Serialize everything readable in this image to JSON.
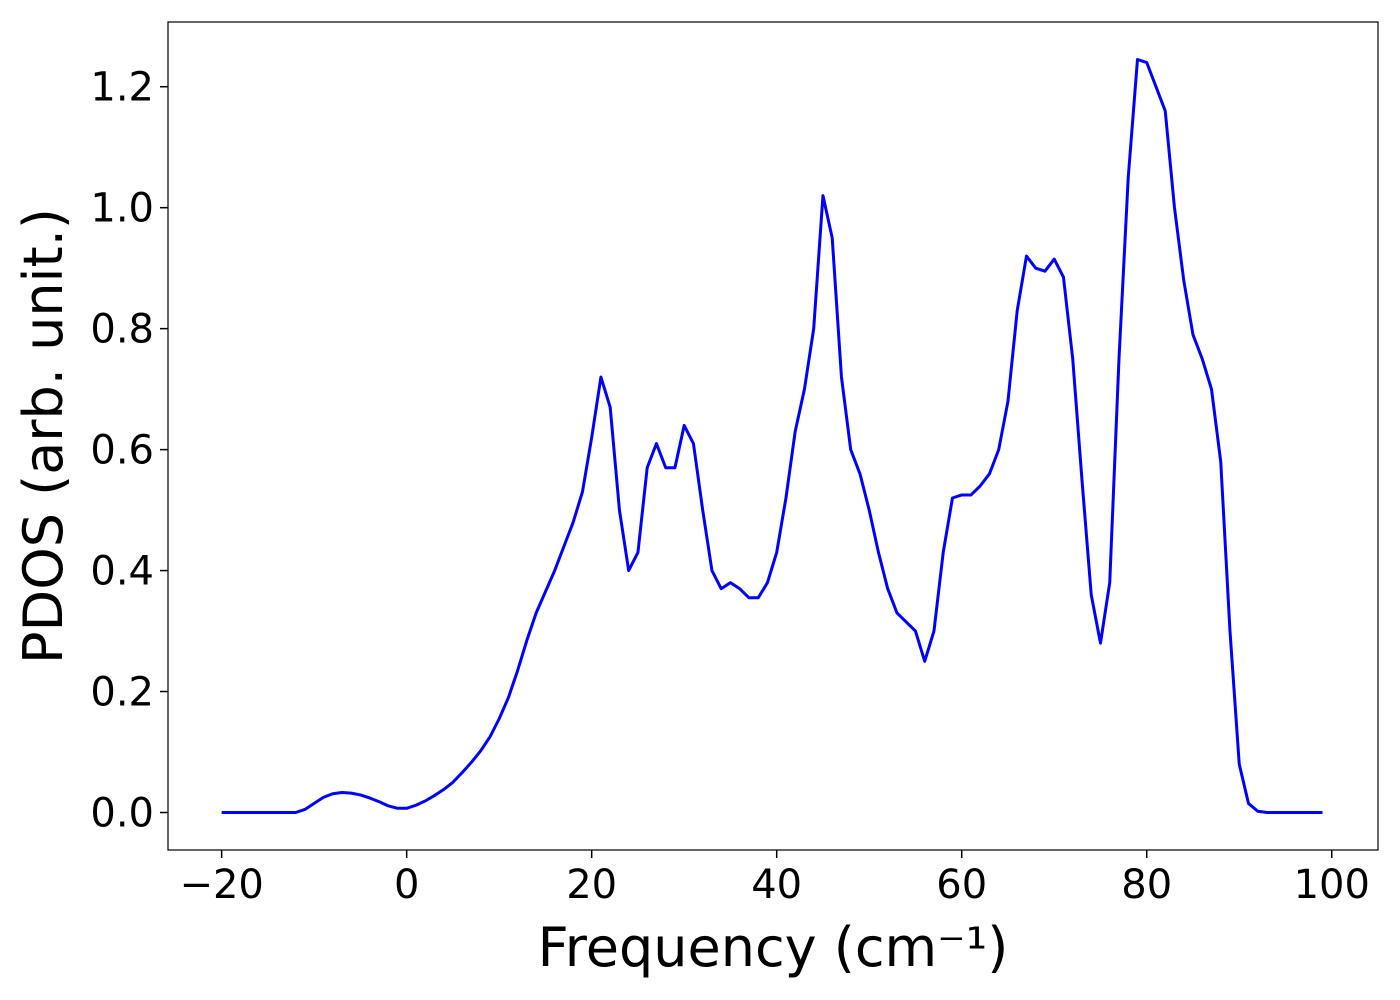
{
  "chart_data": {
    "type": "line",
    "xlabel": "Frequency (cm⁻¹)",
    "ylabel": "PDOS (arb. unit.)",
    "x": [
      -20,
      -19,
      -18,
      -17,
      -16,
      -15,
      -14,
      -13,
      -12,
      -11,
      -10,
      -9,
      -8,
      -7,
      -6,
      -5,
      -4,
      -3,
      -2,
      -1,
      0,
      1,
      2,
      3,
      4,
      5,
      6,
      7,
      8,
      9,
      10,
      11,
      12,
      13,
      14,
      15,
      16,
      17,
      18,
      19,
      20,
      21,
      22,
      23,
      24,
      25,
      26,
      27,
      28,
      29,
      30,
      31,
      32,
      33,
      34,
      35,
      36,
      37,
      38,
      39,
      40,
      41,
      42,
      43,
      44,
      45,
      46,
      47,
      48,
      49,
      50,
      51,
      52,
      53,
      54,
      55,
      56,
      57,
      58,
      59,
      60,
      61,
      62,
      63,
      64,
      65,
      66,
      67,
      68,
      69,
      70,
      71,
      72,
      73,
      74,
      75,
      76,
      77,
      78,
      79,
      80,
      81,
      82,
      83,
      84,
      85,
      86,
      87,
      88,
      89,
      90,
      91,
      92,
      93,
      94,
      95,
      96,
      97,
      98,
      99
    ],
    "series": [
      {
        "name": "PDOS",
        "color": "#0000ff",
        "values": [
          0,
          0,
          0,
          0,
          0,
          0,
          0,
          0,
          0,
          0.005,
          0.015,
          0.025,
          0.031,
          0.033,
          0.032,
          0.029,
          0.024,
          0.018,
          0.011,
          0.007,
          0.007,
          0.012,
          0.019,
          0.028,
          0.038,
          0.05,
          0.066,
          0.083,
          0.102,
          0.125,
          0.155,
          0.19,
          0.235,
          0.285,
          0.33,
          0.365,
          0.4,
          0.44,
          0.48,
          0.53,
          0.62,
          0.72,
          0.67,
          0.5,
          0.4,
          0.43,
          0.57,
          0.61,
          0.57,
          0.57,
          0.64,
          0.61,
          0.5,
          0.4,
          0.37,
          0.38,
          0.37,
          0.355,
          0.355,
          0.38,
          0.43,
          0.52,
          0.63,
          0.7,
          0.8,
          1.02,
          0.95,
          0.72,
          0.6,
          0.56,
          0.5,
          0.43,
          0.37,
          0.33,
          0.315,
          0.3,
          0.25,
          0.3,
          0.43,
          0.52,
          0.525,
          0.525,
          0.54,
          0.56,
          0.6,
          0.68,
          0.83,
          0.92,
          0.9,
          0.895,
          0.915,
          0.885,
          0.75,
          0.55,
          0.36,
          0.28,
          0.38,
          0.75,
          1.05,
          1.245,
          1.24,
          1.2,
          1.16,
          1.0,
          0.88,
          0.79,
          0.75,
          0.7,
          0.58,
          0.3,
          0.08,
          0.015,
          0.002,
          0,
          0,
          0,
          0,
          0,
          0,
          0
        ]
      }
    ],
    "xlim": [
      -25.8,
      105.0
    ],
    "ylim": [
      -0.062,
      1.307
    ],
    "xticks": [
      {
        "value": -20,
        "label": "−20"
      },
      0,
      20,
      40,
      60,
      80,
      100
    ],
    "yticks": [
      {
        "value": 0,
        "label": "0.0"
      },
      {
        "value": 0.2,
        "label": "0.2"
      },
      {
        "value": 0.4,
        "label": "0.4"
      },
      {
        "value": 0.6,
        "label": "0.6"
      },
      {
        "value": 0.8,
        "label": "0.8"
      },
      {
        "value": 1.0,
        "label": "1.0"
      },
      {
        "value": 1.2,
        "label": "1.2"
      }
    ],
    "grid": false
  }
}
